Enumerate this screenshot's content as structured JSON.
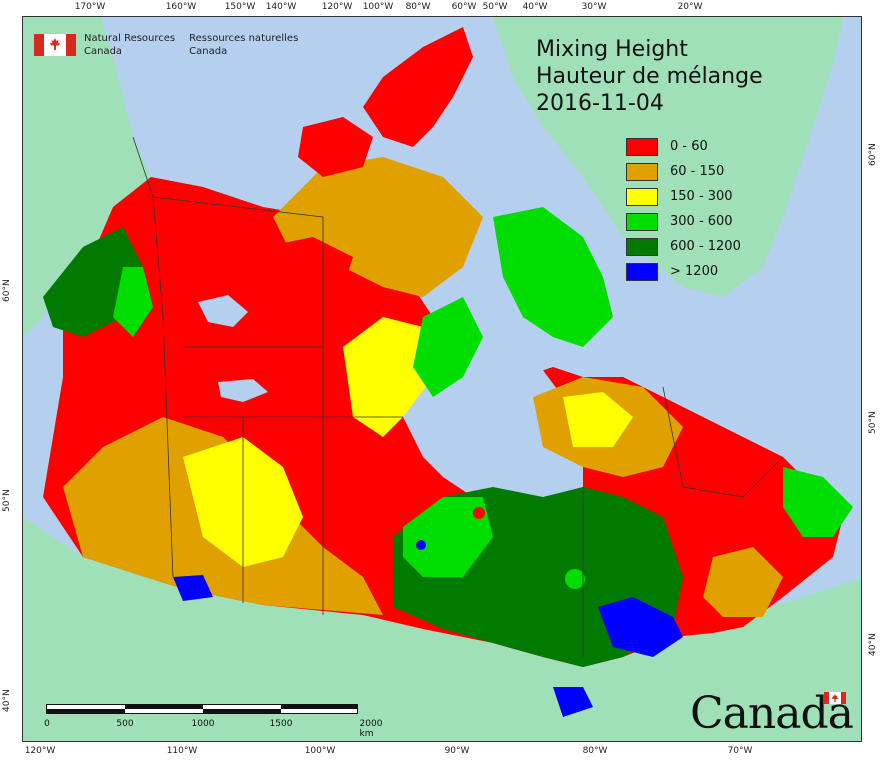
{
  "agency": {
    "en_line1": "Natural Resources",
    "en_line2": "Canada",
    "fr_line1": "Ressources naturelles",
    "fr_line2": "Canada"
  },
  "title": {
    "line1": "Mixing Height",
    "line2": "Hauteur de mélange",
    "date": "2016-11-04"
  },
  "legend": [
    {
      "label": "0 - 60",
      "color": "#ff0000"
    },
    {
      "label": "60 - 150",
      "color": "#e0a000"
    },
    {
      "label": "150 - 300",
      "color": "#ffff00"
    },
    {
      "label": "300 - 600",
      "color": "#00dd00"
    },
    {
      "label": "600 - 1200",
      "color": "#007a00"
    },
    {
      "label": "> 1200",
      "color": "#0000ff"
    }
  ],
  "colors": {
    "ocean": "#b5d0ee",
    "foreign_land": "#9fe0b8",
    "c0": "#ff0000",
    "c1": "#e0a000",
    "c2": "#ffff00",
    "c3": "#00dd00",
    "c4": "#007a00",
    "c5": "#0000ff"
  },
  "graticule": {
    "top": [
      "170°W",
      "160°W",
      "150°W",
      "140°W",
      "120°W",
      "100°W",
      "80°W",
      "60°W",
      "50°W",
      "40°W",
      "30°W",
      "20°W"
    ],
    "bottom": [
      "120°W",
      "110°W",
      "100°W",
      "90°W",
      "80°W",
      "70°W"
    ],
    "left": [
      "60°N",
      "50°N",
      "40°N"
    ],
    "right": [
      "60°N",
      "50°N",
      "40°N"
    ]
  },
  "scalebar": {
    "labels": [
      "0",
      "500",
      "1000",
      "1500",
      "2000 km"
    ]
  },
  "wordmark": "Canada"
}
